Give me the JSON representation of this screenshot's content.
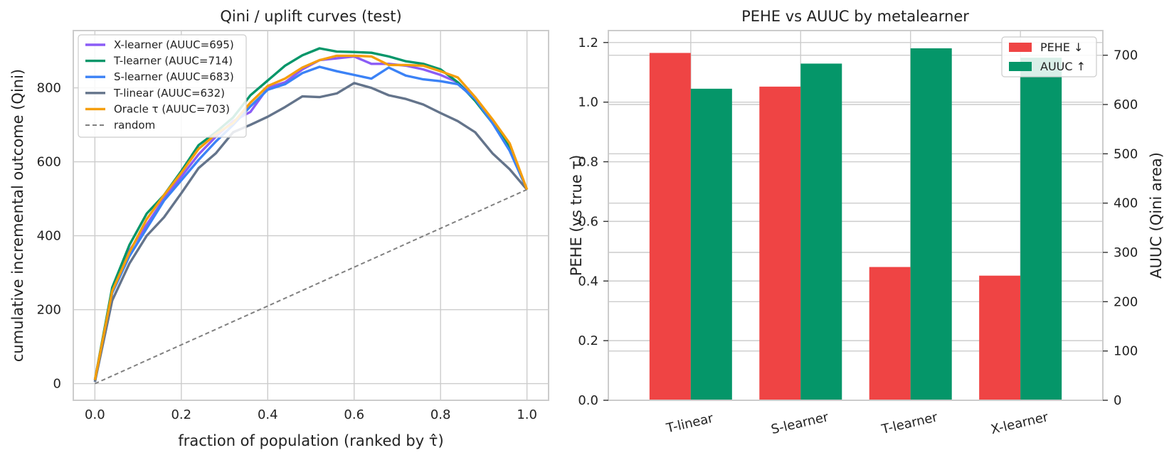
{
  "chart_data": [
    {
      "type": "line",
      "title": "Qini / uplift curves (test)",
      "xlabel": "fraction of population (ranked by τ̂)",
      "ylabel": "cumulative incremental outcome (Qini)",
      "xlim": [
        -0.05,
        1.05
      ],
      "ylim": [
        -45,
        955
      ],
      "xticks": [
        0.0,
        0.2,
        0.4,
        0.6,
        0.8,
        1.0
      ],
      "xtick_labels": [
        "0.0",
        "0.2",
        "0.4",
        "0.6",
        "0.8",
        "1.0"
      ],
      "yticks": [
        0,
        200,
        400,
        600,
        800
      ],
      "ytick_labels": [
        "0",
        "200",
        "400",
        "600",
        "800"
      ],
      "grid": true,
      "legend_position": "top-left",
      "x": [
        0.0,
        0.04,
        0.08,
        0.12,
        0.16,
        0.2,
        0.24,
        0.28,
        0.32,
        0.36,
        0.4,
        0.44,
        0.48,
        0.52,
        0.56,
        0.6,
        0.64,
        0.68,
        0.72,
        0.76,
        0.8,
        0.84,
        0.88,
        0.92,
        0.96,
        1.0
      ],
      "series": [
        {
          "name": "X-learner (AUUC=695)",
          "color": "#8b5cf6",
          "style": "solid",
          "values": [
            10,
            255,
            360,
            430,
            500,
            560,
            620,
            668,
            710,
            735,
            800,
            815,
            850,
            875,
            880,
            885,
            865,
            865,
            860,
            850,
            835,
            815,
            770,
            710,
            640,
            525
          ]
        },
        {
          "name": "T-learner (AUUC=714)",
          "color": "#059669",
          "style": "solid",
          "values": [
            10,
            260,
            375,
            460,
            510,
            575,
            645,
            680,
            720,
            780,
            820,
            860,
            888,
            907,
            898,
            897,
            895,
            885,
            872,
            865,
            850,
            815,
            765,
            705,
            640,
            525
          ]
        },
        {
          "name": "S-learner (AUUC=683)",
          "color": "#3b82f6",
          "style": "solid",
          "values": [
            5,
            245,
            345,
            420,
            495,
            550,
            605,
            655,
            700,
            750,
            795,
            810,
            840,
            857,
            845,
            835,
            825,
            855,
            833,
            823,
            818,
            810,
            770,
            705,
            630,
            525
          ]
        },
        {
          "name": "T-linear (AUUC=632)",
          "color": "#64748b",
          "style": "solid",
          "values": [
            5,
            225,
            325,
            400,
            450,
            515,
            583,
            623,
            680,
            700,
            722,
            748,
            777,
            775,
            785,
            813,
            800,
            780,
            770,
            755,
            732,
            710,
            680,
            623,
            580,
            525
          ]
        },
        {
          "name": "Oracle τ (AUUC=703)",
          "color": "#f59e0b",
          "style": "solid",
          "values": [
            10,
            250,
            355,
            445,
            510,
            570,
            635,
            675,
            705,
            760,
            805,
            825,
            855,
            875,
            887,
            887,
            885,
            862,
            862,
            860,
            845,
            828,
            775,
            715,
            650,
            525
          ]
        },
        {
          "name": "random",
          "color": "#808080",
          "style": "dashed",
          "values": [
            0,
            21,
            42,
            63,
            84,
            105,
            126,
            147,
            168,
            189,
            210,
            231,
            252,
            273,
            294,
            315,
            336,
            357,
            378,
            399,
            420,
            441,
            462,
            483,
            504,
            525
          ]
        }
      ]
    },
    {
      "type": "bar",
      "title": "PEHE vs AUUC by metalearner",
      "categories": [
        "T-linear",
        "S-learner",
        "T-learner",
        "X-learner"
      ],
      "ylabel": "PEHE (vs true τ)",
      "y2label": "AUUC (Qini area)",
      "ylim": [
        0,
        1.24
      ],
      "y2lim": [
        0,
        750
      ],
      "yticks": [
        0.0,
        0.2,
        0.4,
        0.6,
        0.8,
        1.0,
        1.2
      ],
      "ytick_labels": [
        "0.0",
        "0.2",
        "0.4",
        "0.6",
        "0.8",
        "1.0",
        "1.2"
      ],
      "y2ticks": [
        0,
        100,
        200,
        300,
        400,
        500,
        600,
        700
      ],
      "y2tick_labels": [
        "0",
        "100",
        "200",
        "300",
        "400",
        "500",
        "600",
        "700"
      ],
      "grid": true,
      "legend_position": "top-right",
      "series": [
        {
          "name": "PEHE ↓",
          "axis": "left",
          "color": "#ef4444",
          "values": [
            1.165,
            1.052,
            0.447,
            0.418
          ]
        },
        {
          "name": "AUUC ↑",
          "axis": "right",
          "color": "#059669",
          "values": [
            632,
            683,
            714,
            695
          ]
        }
      ]
    }
  ]
}
